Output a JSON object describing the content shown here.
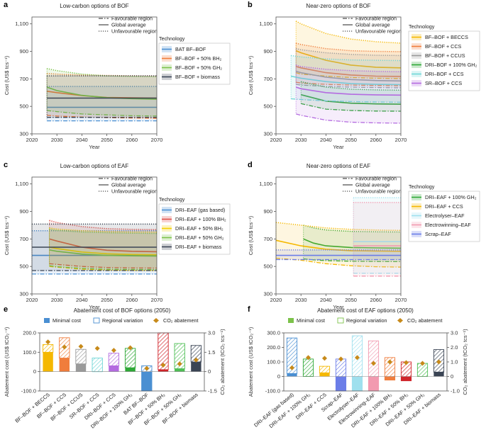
{
  "chart_data": [
    {
      "id": "a",
      "type": "line",
      "title": "Low-carbon options of BOF",
      "xlabel": "Year",
      "ylabel": "Cost (US$ tcs⁻¹)",
      "xlim": [
        2020,
        2070
      ],
      "ylim": [
        300,
        1150
      ],
      "xticks": [
        2020,
        2030,
        2040,
        2050,
        2060,
        2070
      ],
      "yticks": [
        300,
        500,
        700,
        900,
        "1,100"
      ],
      "region_legend": [
        "Favourable region",
        "Global average",
        "Unfavourable region"
      ],
      "legend_title": "Technology",
      "series": [
        {
          "name": "BAT BF–BOF",
          "color": "#4a8fd2",
          "x": [
            2026,
            2070
          ],
          "avg": [
            493,
            493
          ],
          "low": [
            395,
            395
          ],
          "high": [
            645,
            645
          ]
        },
        {
          "name": "BF–BOF + 50% BH₂",
          "color": "#f07d3c",
          "x": [
            2026,
            2030,
            2040,
            2050,
            2060,
            2070
          ],
          "avg": [
            610,
            600,
            578,
            565,
            562,
            560
          ],
          "low": [
            435,
            430,
            422,
            418,
            415,
            413
          ],
          "high": [
            740,
            735,
            728,
            725,
            723,
            722
          ]
        },
        {
          "name": "BF–BOF + 50% GH₂",
          "color": "#7cc24a",
          "x": [
            2026,
            2030,
            2040,
            2050,
            2060,
            2070
          ],
          "avg": [
            640,
            615,
            580,
            563,
            556,
            552
          ],
          "low": [
            470,
            462,
            445,
            438,
            432,
            430
          ],
          "high": [
            775,
            760,
            735,
            722,
            718,
            715
          ]
        },
        {
          "name": "BF–BOF + biomass",
          "color": "#3a4454",
          "x": [
            2026,
            2070
          ],
          "avg": [
            560,
            560
          ],
          "low": [
            420,
            420
          ],
          "high": [
            722,
            722
          ]
        }
      ]
    },
    {
      "id": "b",
      "type": "line",
      "title": "Near-zero options of BOF",
      "xlabel": "Year",
      "ylabel": "Cost (US$ tcs⁻¹)",
      "xlim": [
        2020,
        2070
      ],
      "ylim": [
        300,
        1150
      ],
      "xticks": [
        2020,
        2030,
        2040,
        2050,
        2060,
        2070
      ],
      "yticks": [
        300,
        500,
        700,
        900,
        "1,100"
      ],
      "region_legend": [
        "Favourable region",
        "Global average",
        "Unfavourable region"
      ],
      "legend_title": "Technology",
      "series": [
        {
          "name": "BF–BOF + BECCS",
          "color": "#f5b800",
          "x": [
            2028,
            2030,
            2040,
            2050,
            2060,
            2070
          ],
          "avg": [
            905,
            890,
            835,
            800,
            785,
            780
          ],
          "low": [
            745,
            735,
            720,
            710,
            705,
            702
          ],
          "high": [
            1120,
            1100,
            1030,
            990,
            970,
            960
          ]
        },
        {
          "name": "BF–BOF + CCS",
          "color": "#f07d3c",
          "x": [
            2028,
            2030,
            2040,
            2050,
            2060,
            2070
          ],
          "avg": [
            790,
            780,
            745,
            728,
            720,
            718
          ],
          "low": [
            675,
            670,
            660,
            655,
            652,
            650
          ],
          "high": [
            960,
            950,
            920,
            905,
            900,
            898
          ]
        },
        {
          "name": "BF–BOF + CCUS",
          "color": "#9a9a9a",
          "x": [
            2028,
            2030,
            2040,
            2050,
            2060,
            2070
          ],
          "avg": [
            755,
            745,
            712,
            695,
            688,
            685
          ],
          "low": [
            660,
            655,
            645,
            640,
            637,
            635
          ],
          "high": [
            920,
            912,
            890,
            878,
            872,
            870
          ]
        },
        {
          "name": "DRI–BOF + 100% GH₂",
          "color": "#2ea836",
          "x": [
            2030,
            2040,
            2050,
            2060,
            2070
          ],
          "avg": [
            585,
            538,
            523,
            518,
            516
          ],
          "low": [
            520,
            480,
            470,
            466,
            465
          ],
          "high": [
            680,
            640,
            625,
            620,
            618
          ]
        },
        {
          "name": "DRI–BOF + CCS",
          "color": "#6fd6d6",
          "x": [
            2026,
            2030,
            2040,
            2050,
            2060,
            2070
          ],
          "avg": [
            720,
            705,
            680,
            665,
            660,
            658
          ],
          "low": [
            555,
            550,
            540,
            535,
            532,
            530
          ],
          "high": [
            870,
            860,
            845,
            838,
            835,
            833
          ]
        },
        {
          "name": "SR–BOF + CCS",
          "color": "#b46be0",
          "x": [
            2028,
            2030,
            2040,
            2050,
            2060,
            2070
          ],
          "avg": [
            640,
            628,
            600,
            588,
            584,
            582
          ],
          "low": [
            445,
            435,
            400,
            385,
            380,
            378
          ],
          "high": [
            800,
            790,
            770,
            760,
            755,
            752
          ]
        }
      ]
    },
    {
      "id": "c",
      "type": "line",
      "title": "Low-carbon options of EAF",
      "xlabel": "Year",
      "ylabel": "Cost (US$ tcs⁻¹)",
      "xlim": [
        2020,
        2070
      ],
      "ylim": [
        300,
        1150
      ],
      "xticks": [
        2020,
        2030,
        2040,
        2050,
        2060,
        2070
      ],
      "yticks": [
        300,
        500,
        700,
        900,
        "1,100"
      ],
      "region_legend": [
        "Favourable region",
        "Global average",
        "Unfavourable region"
      ],
      "legend_title": "Technology",
      "series": [
        {
          "name": "DRI–EAF (gas based)",
          "color": "#4a8fd2",
          "x": [
            2020,
            2070
          ],
          "avg": [
            580,
            580
          ],
          "low": [
            445,
            445
          ],
          "high": [
            760,
            760
          ]
        },
        {
          "name": "DRI–EAF + 100% BH₂",
          "color": "#e0504a",
          "x": [
            2027,
            2030,
            2040,
            2050,
            2060,
            2070
          ],
          "avg": [
            700,
            685,
            640,
            618,
            610,
            607
          ],
          "low": [
            520,
            515,
            500,
            492,
            489,
            488
          ],
          "high": [
            835,
            820,
            790,
            775,
            770,
            768
          ]
        },
        {
          "name": "DRI–EAF + 50% BH₂",
          "color": "#f5d000",
          "x": [
            2027,
            2030,
            2040,
            2050,
            2060,
            2070
          ],
          "avg": [
            640,
            630,
            605,
            592,
            587,
            585
          ],
          "low": [
            500,
            494,
            480,
            474,
            471,
            470
          ],
          "high": [
            780,
            772,
            760,
            754,
            751,
            750
          ]
        },
        {
          "name": "DRI–EAF + 50% GH₂",
          "color": "#7cc24a",
          "x": [
            2027,
            2030,
            2040,
            2050,
            2060,
            2070
          ],
          "avg": [
            620,
            610,
            590,
            580,
            577,
            575
          ],
          "low": [
            505,
            498,
            486,
            480,
            478,
            477
          ],
          "high": [
            770,
            762,
            750,
            745,
            742,
            740
          ]
        },
        {
          "name": "DRI–EAF + biomass",
          "color": "#3a4454",
          "x": [
            2020,
            2070
          ],
          "avg": [
            640,
            640
          ],
          "low": [
            470,
            470
          ],
          "high": [
            808,
            808
          ]
        }
      ]
    },
    {
      "id": "d",
      "type": "line",
      "title": "Near-zero options of EAF",
      "xlabel": "Year",
      "ylabel": "Cost (US$ tcs⁻¹)",
      "xlim": [
        2020,
        2070
      ],
      "ylim": [
        300,
        1150
      ],
      "xticks": [
        2020,
        2030,
        2040,
        2050,
        2060,
        2070
      ],
      "yticks": [
        300,
        500,
        700,
        900,
        "1,100"
      ],
      "region_legend": [
        "Favourable region",
        "Global average",
        "Unfavourable region"
      ],
      "legend_title": "Technology",
      "series": [
        {
          "name": "DRI–EAF + 100% GH₂",
          "color": "#2ea836",
          "x": [
            2031,
            2035,
            2040,
            2050,
            2060,
            2070
          ],
          "avg": [
            700,
            670,
            650,
            638,
            635,
            633
          ],
          "low": [
            555,
            548,
            542,
            538,
            536,
            535
          ],
          "high": [
            800,
            780,
            765,
            755,
            752,
            750
          ]
        },
        {
          "name": "DRI–EAF + CCS",
          "color": "#f5b800",
          "x": [
            2020,
            2030,
            2040,
            2050,
            2060,
            2070
          ],
          "avg": [
            690,
            650,
            625,
            615,
            612,
            610
          ],
          "low": [
            560,
            545,
            520,
            505,
            498,
            495
          ],
          "high": [
            820,
            800,
            780,
            770,
            765,
            762
          ]
        },
        {
          "name": "Electrolyser–EAF",
          "color": "#9fe0ee",
          "x": [
            2051,
            2070
          ],
          "avg": [
            680,
            680
          ],
          "low": [
            450,
            450
          ],
          "high": [
            1000,
            1000
          ]
        },
        {
          "name": "Electrowinning–EAF",
          "color": "#f29ab0",
          "x": [
            2051,
            2070
          ],
          "avg": [
            650,
            650
          ],
          "low": [
            430,
            430
          ],
          "high": [
            965,
            965
          ]
        },
        {
          "name": "Scrap–EAF",
          "color": "#6b7de8",
          "x": [
            2020,
            2070
          ],
          "avg": [
            580,
            580
          ],
          "low": [
            550,
            550
          ],
          "high": [
            620,
            620
          ]
        }
      ]
    },
    {
      "id": "e",
      "type": "bar",
      "title": "Abatement cost of BOF options (2050)",
      "legend": [
        "Minimal cost",
        "Regional variation",
        "CO₂ abatement"
      ],
      "ylabel": "Abatement cost (US$ tCO₂⁻¹)",
      "y2label": "CO₂ abatement (tCO₂ tcs⁻¹)",
      "ylim": [
        -100,
        200
      ],
      "y2lim": [
        -1.5,
        3.0
      ],
      "yticks": [
        "200.0",
        "100.0",
        "0",
        "-100.0"
      ],
      "y2ticks": [
        "3.0",
        "1.5",
        "0",
        "-1.5"
      ],
      "categories": [
        "BF–BOF + BECCS",
        "BF–BOF + CCS",
        "BF–BOF + CCUS",
        "SR–BOF + CCS",
        "DRI–BOF + CCS",
        "DRI–BOF + 100% GH₂",
        "BAT BF–BOF",
        "BF–BOF + 50% BH₂",
        "BF–BOF + 50% GH₂",
        "BF–BOF + biomass"
      ],
      "colors": [
        "#f5b800",
        "#f07d3c",
        "#9a9a9a",
        "#6fd6d6",
        "#b46be0",
        "#2ea836",
        "#4a8fd2",
        "#d0242a",
        "#4fbf55",
        "#3a4454"
      ],
      "min_cost": [
        100,
        70,
        40,
        0,
        30,
        20,
        -100,
        10,
        15,
        50
      ],
      "max_cost": [
        140,
        175,
        115,
        70,
        95,
        120,
        30,
        200,
        145,
        135
      ],
      "co2_abatement": [
        2.3,
        1.9,
        1.95,
        1.8,
        1.65,
        1.85,
        0.25,
        0.5,
        0.6,
        0.9
      ]
    },
    {
      "id": "f",
      "type": "bar",
      "title": "Abatement cost of EAF options (2050)",
      "legend": [
        "Minimal cost",
        "Regional variation",
        "CO₂ abatement"
      ],
      "ylabel": "Abatement cost (US$ tCO₂⁻¹)",
      "y2label": "CO₂ abatement (tCO₂ tcs⁻¹)",
      "ylim": [
        -100,
        300
      ],
      "y2lim": [
        -1.0,
        3.0
      ],
      "yticks": [
        "300.0",
        "200.0",
        "100.0",
        "0",
        "-100.0"
      ],
      "y2ticks": [
        "3.0",
        "2.0",
        "1.0",
        "0",
        "-1.0"
      ],
      "categories": [
        "DRI–EAF (gas based)",
        "DRI–EAF + 100% GH₂",
        "DRI–EAF + CCS",
        "Scrap–EAF",
        "Electrolyser–EAF",
        "Electrowinning–EAF",
        "DRI–EAF + 100% BH₂",
        "DRI–EAF + 50% BH₂",
        "DRI–EAF + 50% GH₂",
        "DRI–EAF + biomass"
      ],
      "colors": [
        "#4a8fd2",
        "#2ea836",
        "#f5b800",
        "#6b7de8",
        "#9fe0ee",
        "#f29ab0",
        "#f07d3c",
        "#d0242a",
        "#4fbf55",
        "#3a4454"
      ],
      "min_cost": [
        20,
        0,
        25,
        -100,
        -100,
        -100,
        -25,
        -30,
        0,
        30
      ],
      "max_cost": [
        265,
        120,
        70,
        120,
        280,
        245,
        130,
        100,
        90,
        185
      ],
      "co2_abatement": [
        0.6,
        1.3,
        1.25,
        1.2,
        1.3,
        0.9,
        1.0,
        0.95,
        0.9,
        1.0
      ]
    }
  ]
}
